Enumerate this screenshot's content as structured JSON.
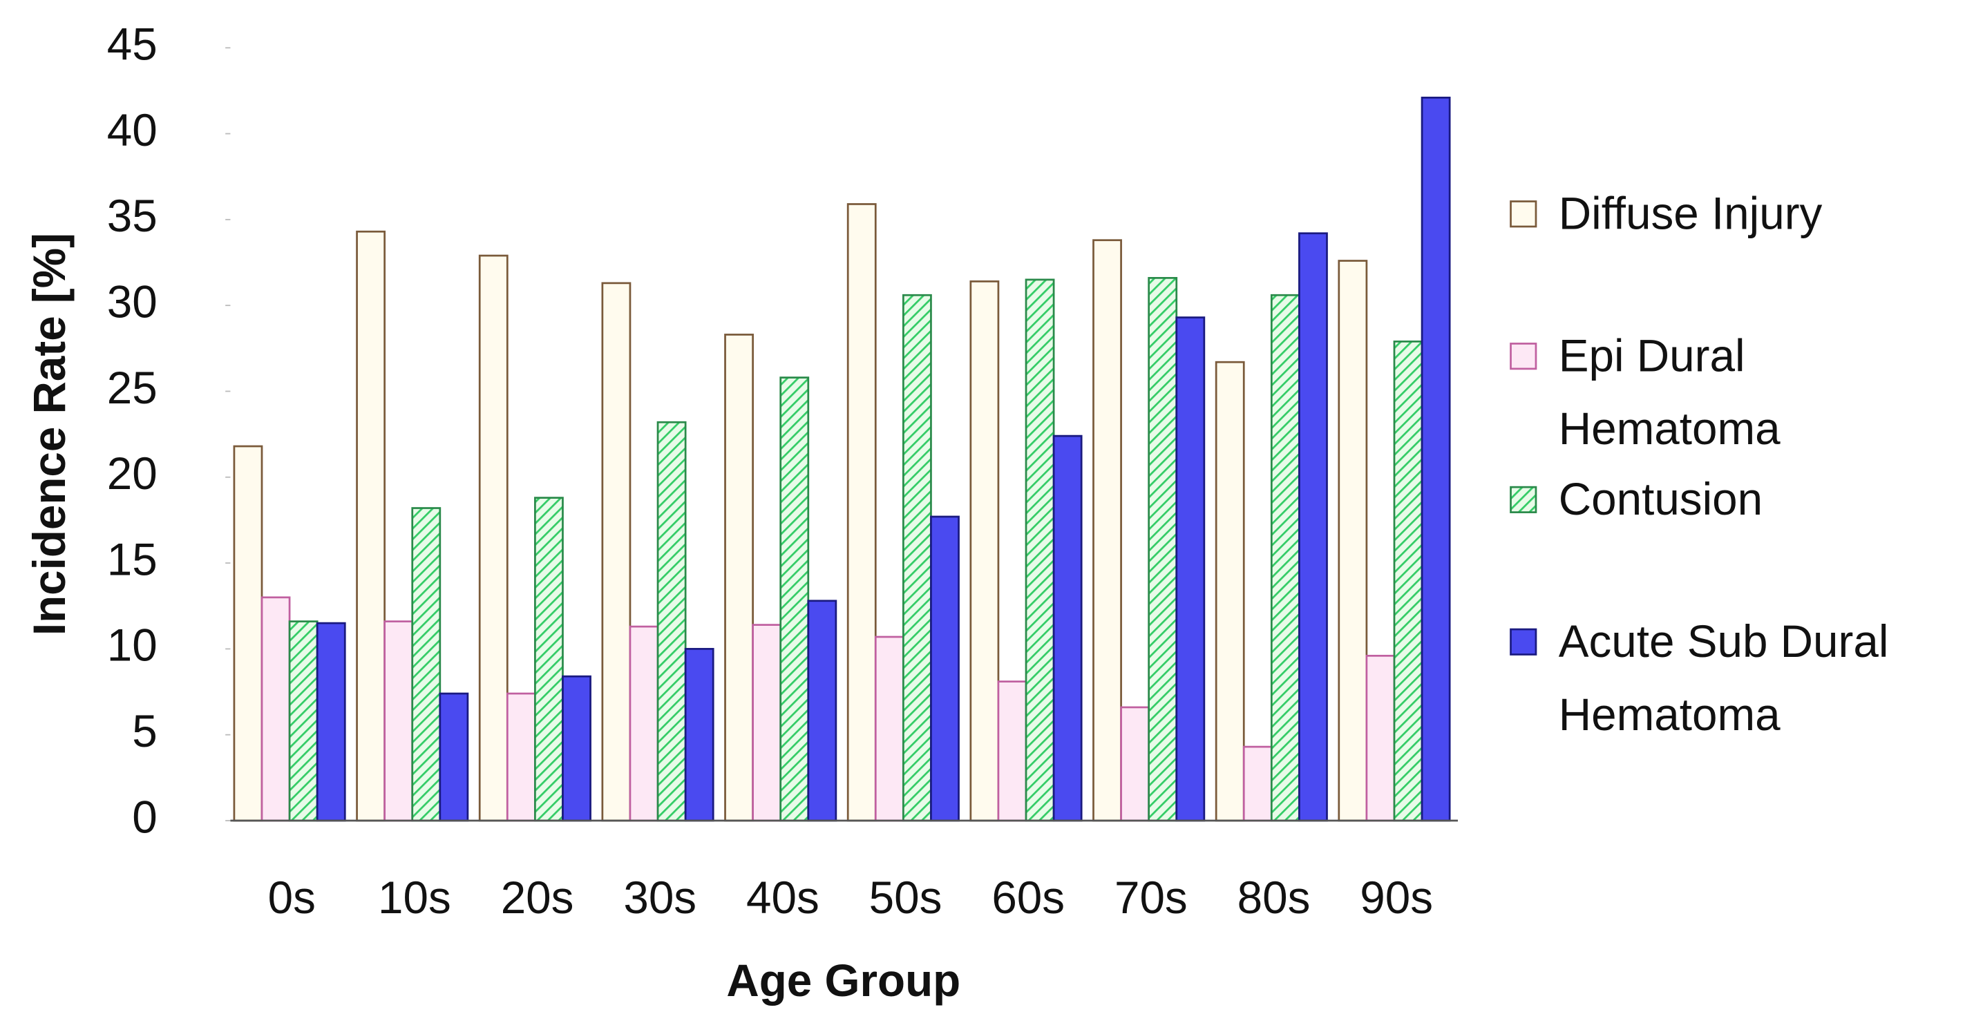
{
  "chart_data": {
    "type": "bar",
    "x_label": "Age Group",
    "y_label": "Incidence Rate [%]",
    "categories": [
      "0s",
      "10s",
      "20s",
      "30s",
      "40s",
      "50s",
      "60s",
      "70s",
      "80s",
      "90s"
    ],
    "series": [
      {
        "name": "Diffuse Injury",
        "color": "#fffbee",
        "edge": "#7a5a3a",
        "values": [
          21.8,
          34.3,
          32.9,
          31.3,
          28.3,
          35.9,
          31.4,
          33.8,
          26.7,
          32.6
        ]
      },
      {
        "name": "Epi Dural Hematoma",
        "color": "#fde8f5",
        "edge": "#c060a0",
        "values": [
          13.0,
          11.6,
          7.4,
          11.3,
          11.4,
          10.7,
          8.1,
          6.6,
          4.3,
          9.6
        ]
      },
      {
        "name": "Contusion",
        "color": "#33cc66",
        "edge": "#2a8a4a",
        "pattern": "hatch",
        "values": [
          11.6,
          18.2,
          18.8,
          23.2,
          25.8,
          30.6,
          31.5,
          31.6,
          30.6,
          27.9
        ]
      },
      {
        "name": "Acute Sub Dural Hematoma",
        "color": "#4a4af0",
        "edge": "#1a1a80",
        "values": [
          11.5,
          7.4,
          8.4,
          10.0,
          12.8,
          17.7,
          22.4,
          29.3,
          34.2,
          42.1
        ]
      }
    ],
    "ylim": [
      0,
      45
    ],
    "yticks": [
      0,
      5,
      10,
      15,
      20,
      25,
      30,
      35,
      40,
      45
    ],
    "grid": false,
    "legend": "right"
  }
}
